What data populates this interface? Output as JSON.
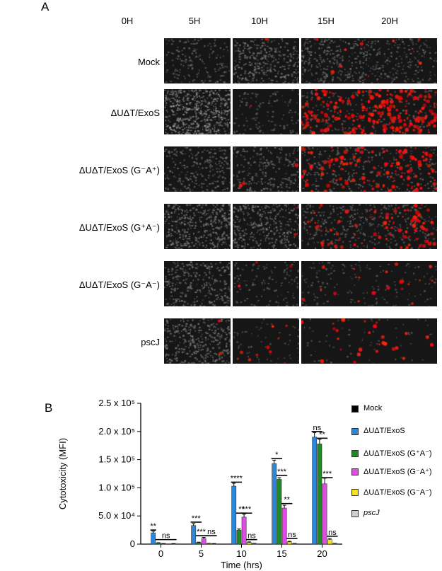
{
  "panel_a": {
    "letter": "A",
    "columns": [
      "0H",
      "5H",
      "10H",
      "15H",
      "20H"
    ],
    "rows": [
      {
        "label": "Mock",
        "italic": false,
        "red": [
          0,
          1,
          5,
          6,
          5
        ],
        "bright": [
          0.3,
          0.55,
          0.45,
          0.4,
          0.35
        ]
      },
      {
        "label": "ΔUΔT/ExoS",
        "italic": false,
        "red": [
          0,
          1,
          90,
          140,
          150
        ],
        "bright": [
          0.9,
          0.2,
          0.2,
          0.15,
          0.15
        ]
      },
      {
        "label": "ΔUΔT/ExoS (G⁻A⁺)",
        "italic": false,
        "red": [
          0,
          3,
          50,
          80,
          70
        ],
        "bright": [
          0.4,
          0.4,
          0.3,
          0.25,
          0.25
        ]
      },
      {
        "label": "ΔUΔT/ExoS (G⁺A⁻)",
        "italic": false,
        "red": [
          0,
          2,
          25,
          55,
          60
        ],
        "bright": [
          0.65,
          0.55,
          0.35,
          0.3,
          0.3
        ]
      },
      {
        "label": "ΔUΔT/ExoS (G⁻A⁻)",
        "italic": false,
        "red": [
          0,
          3,
          8,
          12,
          12
        ],
        "bright": [
          0.5,
          0.2,
          0.15,
          0.12,
          0.12
        ]
      },
      {
        "label": "pscJ",
        "italic": true,
        "red": [
          2,
          10,
          12,
          14,
          14
        ],
        "bright": [
          0.55,
          0.1,
          0.05,
          0.05,
          0.05
        ]
      }
    ]
  },
  "panel_b": {
    "letter": "B",
    "chart_data": {
      "type": "bar",
      "ylabel": "Cytotoxicity (MFI)",
      "xlabel": "Time (hrs)",
      "categories": [
        "0",
        "5",
        "10",
        "15",
        "20"
      ],
      "ylim": [
        0,
        250000
      ],
      "y_ticks": [
        {
          "value": 0,
          "label": "0"
        },
        {
          "value": 50000,
          "label": "5.0 x 10⁴"
        },
        {
          "value": 100000,
          "label": "1.0 x 10⁵"
        },
        {
          "value": 150000,
          "label": "1.5 x 10⁵"
        },
        {
          "value": 200000,
          "label": "2.0 x 10⁵"
        },
        {
          "value": 250000,
          "label": "2.5 x 10⁵"
        }
      ],
      "legend_position": "right",
      "series": [
        {
          "name": "Mock",
          "color": "#000000",
          "values": [
            0,
            0,
            0,
            0,
            0
          ],
          "errors": [
            0,
            0,
            0,
            0,
            0
          ]
        },
        {
          "name": "ΔUΔT/ExoS",
          "color": "#2f86d9",
          "values": [
            20000,
            33000,
            103000,
            143000,
            190000
          ],
          "errors": [
            3000,
            3500,
            5000,
            6000,
            8000
          ]
        },
        {
          "name": "ΔUΔT/ExoS (G⁺A⁻)",
          "color": "#1f8a25",
          "values": [
            2000,
            3000,
            25000,
            115000,
            178000
          ],
          "errors": [
            500,
            500,
            2000,
            3000,
            8000
          ]
        },
        {
          "name": "ΔUΔT/ExoS (G⁻A⁺)",
          "color": "#e04ae6",
          "values": [
            500,
            10000,
            48000,
            64000,
            107000
          ],
          "errors": [
            300,
            2000,
            5000,
            5000,
            10000
          ]
        },
        {
          "name": "ΔUΔT/ExoS (G⁻A⁻)",
          "color": "#f2e41c",
          "values": [
            0,
            1000,
            3000,
            4000,
            8000
          ],
          "errors": [
            0,
            300,
            1000,
            1000,
            2000
          ]
        },
        {
          "name": "pscJ",
          "color": "#d0d0d0",
          "values": [
            500,
            500,
            1000,
            1000,
            1000
          ],
          "errors": [
            200,
            200,
            300,
            300,
            300
          ]
        }
      ],
      "annotations": [
        {
          "group": 0,
          "label": "**",
          "y": 25000,
          "from": 1,
          "to": 1
        },
        {
          "group": 0,
          "label": "ns",
          "y": 8000,
          "from": 2,
          "to": 5
        },
        {
          "group": 1,
          "label": "***",
          "y": 39000,
          "from": 1,
          "to": 2
        },
        {
          "group": 1,
          "label": "***",
          "y": 15000,
          "from": 2,
          "to": 3
        },
        {
          "group": 1,
          "label": "ns",
          "y": 15000,
          "from": 4,
          "to": 5
        },
        {
          "group": 2,
          "label": "****",
          "y": 110000,
          "from": 1,
          "to": 2
        },
        {
          "group": 2,
          "label": "**",
          "y": 55000,
          "from": 2,
          "to": 3
        },
        {
          "group": 2,
          "label": "***",
          "y": 55000,
          "from": 3,
          "to": 4
        },
        {
          "group": 2,
          "label": "ns",
          "y": 8000,
          "from": 4,
          "to": 5
        },
        {
          "group": 3,
          "label": "*",
          "y": 152000,
          "from": 1,
          "to": 2
        },
        {
          "group": 3,
          "label": "***",
          "y": 122000,
          "from": 2,
          "to": 3
        },
        {
          "group": 3,
          "label": "**",
          "y": 72000,
          "from": 3,
          "to": 4
        },
        {
          "group": 3,
          "label": "ns",
          "y": 10000,
          "from": 4,
          "to": 5
        },
        {
          "group": 4,
          "label": "ns",
          "y": 200000,
          "from": 1,
          "to": 2
        },
        {
          "group": 4,
          "label": "**",
          "y": 188000,
          "from": 2,
          "to": 3
        },
        {
          "group": 4,
          "label": "***",
          "y": 118000,
          "from": 3,
          "to": 4
        },
        {
          "group": 4,
          "label": "ns",
          "y": 14000,
          "from": 4,
          "to": 5
        }
      ]
    }
  }
}
